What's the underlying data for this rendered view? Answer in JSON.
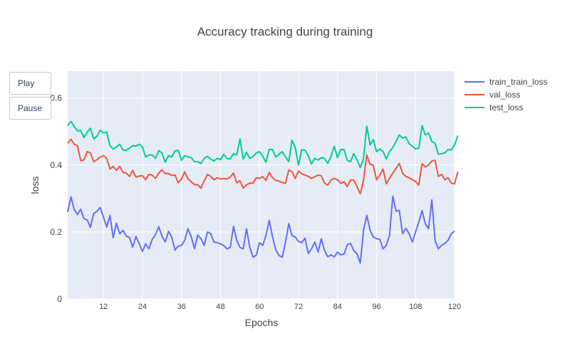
{
  "controls": {
    "play_label": "Play",
    "pause_label": "Pause"
  },
  "chart_data": {
    "type": "line",
    "title": "Accuracy tracking during training",
    "xlabel": "Epochs",
    "ylabel": "loss",
    "xlim": [
      1,
      120
    ],
    "ylim": [
      0,
      0.68
    ],
    "xticks": [
      12,
      24,
      36,
      48,
      60,
      72,
      84,
      96,
      108,
      120
    ],
    "yticks": [
      0,
      0.2,
      0.4,
      0.6
    ],
    "grid": true,
    "legend": "top-right",
    "series": [
      {
        "name": "train_train_loss",
        "color": "#636efa",
        "values": [
          0.26,
          0.305,
          0.268,
          0.252,
          0.268,
          0.24,
          0.236,
          0.214,
          0.255,
          0.262,
          0.273,
          0.245,
          0.215,
          0.25,
          0.183,
          0.226,
          0.195,
          0.205,
          0.188,
          0.184,
          0.155,
          0.187,
          0.165,
          0.142,
          0.165,
          0.15,
          0.178,
          0.192,
          0.216,
          0.188,
          0.17,
          0.202,
          0.185,
          0.146,
          0.158,
          0.16,
          0.175,
          0.21,
          0.186,
          0.15,
          0.191,
          0.18,
          0.16,
          0.2,
          0.195,
          0.17,
          0.168,
          0.165,
          0.16,
          0.15,
          0.154,
          0.217,
          0.175,
          0.154,
          0.15,
          0.21,
          0.155,
          0.125,
          0.131,
          0.168,
          0.16,
          0.19,
          0.235,
          0.185,
          0.147,
          0.13,
          0.125,
          0.17,
          0.225,
          0.19,
          0.185,
          0.172,
          0.168,
          0.182,
          0.136,
          0.15,
          0.17,
          0.14,
          0.18,
          0.145,
          0.126,
          0.132,
          0.126,
          0.14,
          0.132,
          0.134,
          0.162,
          0.166,
          0.145,
          0.135,
          0.107,
          0.205,
          0.25,
          0.206,
          0.185,
          0.18,
          0.178,
          0.15,
          0.16,
          0.19,
          0.307,
          0.262,
          0.265,
          0.195,
          0.211,
          0.196,
          0.17,
          0.2,
          0.23,
          0.264,
          0.225,
          0.21,
          0.296,
          0.175,
          0.15,
          0.16,
          0.166,
          0.175,
          0.195,
          0.203
        ]
      },
      {
        "name": "val_loss",
        "color": "#ef553b",
        "values": [
          0.465,
          0.477,
          0.462,
          0.458,
          0.413,
          0.415,
          0.44,
          0.436,
          0.41,
          0.416,
          0.424,
          0.428,
          0.42,
          0.388,
          0.396,
          0.384,
          0.396,
          0.378,
          0.376,
          0.366,
          0.384,
          0.364,
          0.367,
          0.368,
          0.356,
          0.372,
          0.37,
          0.36,
          0.376,
          0.386,
          0.374,
          0.375,
          0.369,
          0.37,
          0.347,
          0.358,
          0.38,
          0.359,
          0.35,
          0.342,
          0.341,
          0.331,
          0.353,
          0.372,
          0.366,
          0.356,
          0.362,
          0.358,
          0.36,
          0.358,
          0.364,
          0.376,
          0.347,
          0.353,
          0.331,
          0.341,
          0.346,
          0.346,
          0.362,
          0.36,
          0.365,
          0.354,
          0.378,
          0.362,
          0.354,
          0.352,
          0.348,
          0.345,
          0.385,
          0.38,
          0.36,
          0.382,
          0.374,
          0.37,
          0.366,
          0.36,
          0.365,
          0.37,
          0.368,
          0.346,
          0.34,
          0.355,
          0.36,
          0.356,
          0.345,
          0.35,
          0.336,
          0.355,
          0.355,
          0.336,
          0.314,
          0.355,
          0.43,
          0.402,
          0.4,
          0.356,
          0.37,
          0.388,
          0.344,
          0.36,
          0.376,
          0.39,
          0.405,
          0.376,
          0.366,
          0.362,
          0.356,
          0.351,
          0.34,
          0.404,
          0.394,
          0.4,
          0.412,
          0.414,
          0.366,
          0.372,
          0.356,
          0.362,
          0.346,
          0.344,
          0.38
        ]
      },
      {
        "name": "test_loss",
        "color": "#00cc96",
        "values": [
          0.518,
          0.53,
          0.515,
          0.502,
          0.503,
          0.482,
          0.498,
          0.51,
          0.478,
          0.486,
          0.504,
          0.496,
          0.498,
          0.458,
          0.448,
          0.454,
          0.462,
          0.445,
          0.444,
          0.45,
          0.458,
          0.456,
          0.462,
          0.454,
          0.424,
          0.43,
          0.43,
          0.42,
          0.443,
          0.436,
          0.408,
          0.428,
          0.424,
          0.442,
          0.444,
          0.414,
          0.428,
          0.424,
          0.422,
          0.41,
          0.41,
          0.404,
          0.42,
          0.426,
          0.418,
          0.412,
          0.42,
          0.416,
          0.432,
          0.42,
          0.418,
          0.434,
          0.43,
          0.478,
          0.418,
          0.438,
          0.42,
          0.425,
          0.436,
          0.44,
          0.426,
          0.408,
          0.447,
          0.446,
          0.424,
          0.432,
          0.44,
          0.424,
          0.41,
          0.474,
          0.452,
          0.4,
          0.446,
          0.444,
          0.428,
          0.403,
          0.42,
          0.415,
          0.422,
          0.42,
          0.405,
          0.426,
          0.456,
          0.422,
          0.446,
          0.446,
          0.414,
          0.41,
          0.434,
          0.416,
          0.392,
          0.42,
          0.516,
          0.46,
          0.476,
          0.44,
          0.448,
          0.44,
          0.418,
          0.44,
          0.452,
          0.47,
          0.49,
          0.48,
          0.484,
          0.464,
          0.456,
          0.448,
          0.45,
          0.518,
          0.49,
          0.495,
          0.47,
          0.465,
          0.432,
          0.434,
          0.436,
          0.446,
          0.445,
          0.46,
          0.488
        ]
      }
    ]
  }
}
